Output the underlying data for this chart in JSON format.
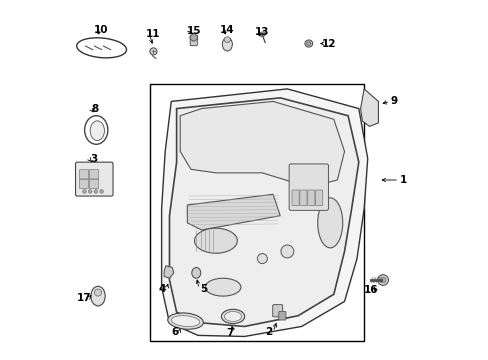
{
  "background_color": "#ffffff",
  "line_color": "#000000",
  "parts": [
    {
      "id": 1,
      "label": "1"
    },
    {
      "id": 2,
      "label": "2"
    },
    {
      "id": 3,
      "label": "3"
    },
    {
      "id": 4,
      "label": "4"
    },
    {
      "id": 5,
      "label": "5"
    },
    {
      "id": 6,
      "label": "6"
    },
    {
      "id": 7,
      "label": "7"
    },
    {
      "id": 8,
      "label": "8"
    },
    {
      "id": 9,
      "label": "9"
    },
    {
      "id": 10,
      "label": "10"
    },
    {
      "id": 11,
      "label": "11"
    },
    {
      "id": 12,
      "label": "12"
    },
    {
      "id": 13,
      "label": "13"
    },
    {
      "id": 14,
      "label": "14"
    },
    {
      "id": 15,
      "label": "15"
    },
    {
      "id": 16,
      "label": "16"
    },
    {
      "id": 17,
      "label": "17"
    }
  ]
}
